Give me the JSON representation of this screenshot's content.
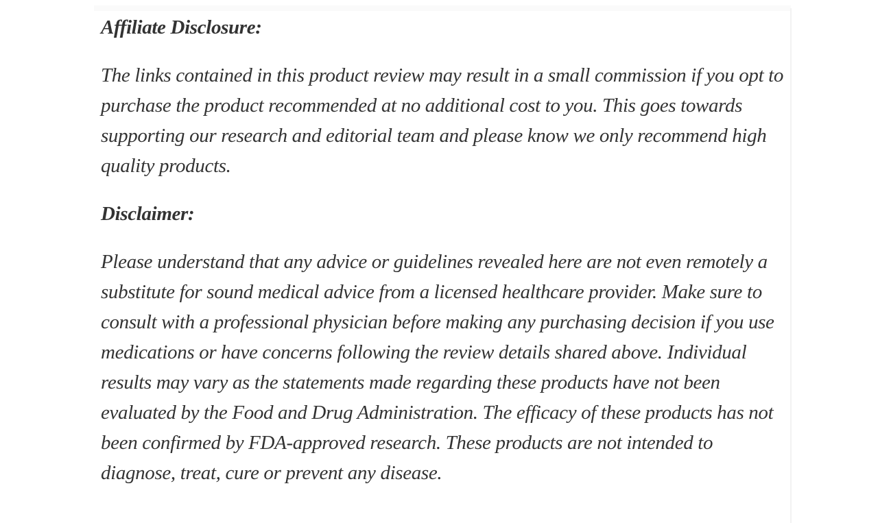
{
  "page": {
    "background_color": "#ffffff",
    "text_color": "#333333",
    "top_strip_color": "#fafafa",
    "right_divider_color": "#f2f2f2"
  },
  "article": {
    "sections": [
      {
        "heading": "Affiliate Disclosure:",
        "paragraph": "The links contained in this product review may result in a small commission if you opt to purchase the product recommended at no additional cost to you. This goes towards supporting our research and editorial team and please know we only recommend high quality products."
      },
      {
        "heading": "Disclaimer:",
        "paragraph": "Please understand that any advice or guidelines revealed here are not even remotely a substitute for sound medical advice from a licensed healthcare provider. Make sure to consult with a professional physician before making any purchasing decision if you use medications or have concerns following the review details shared above. Individual results may vary as the statements made regarding these products have not been evaluated by the Food and Drug Administration. The efficacy of these products has not been confirmed by FDA-approved research. These products are not intended to diagnose, treat, cure or prevent any disease."
      }
    ]
  }
}
